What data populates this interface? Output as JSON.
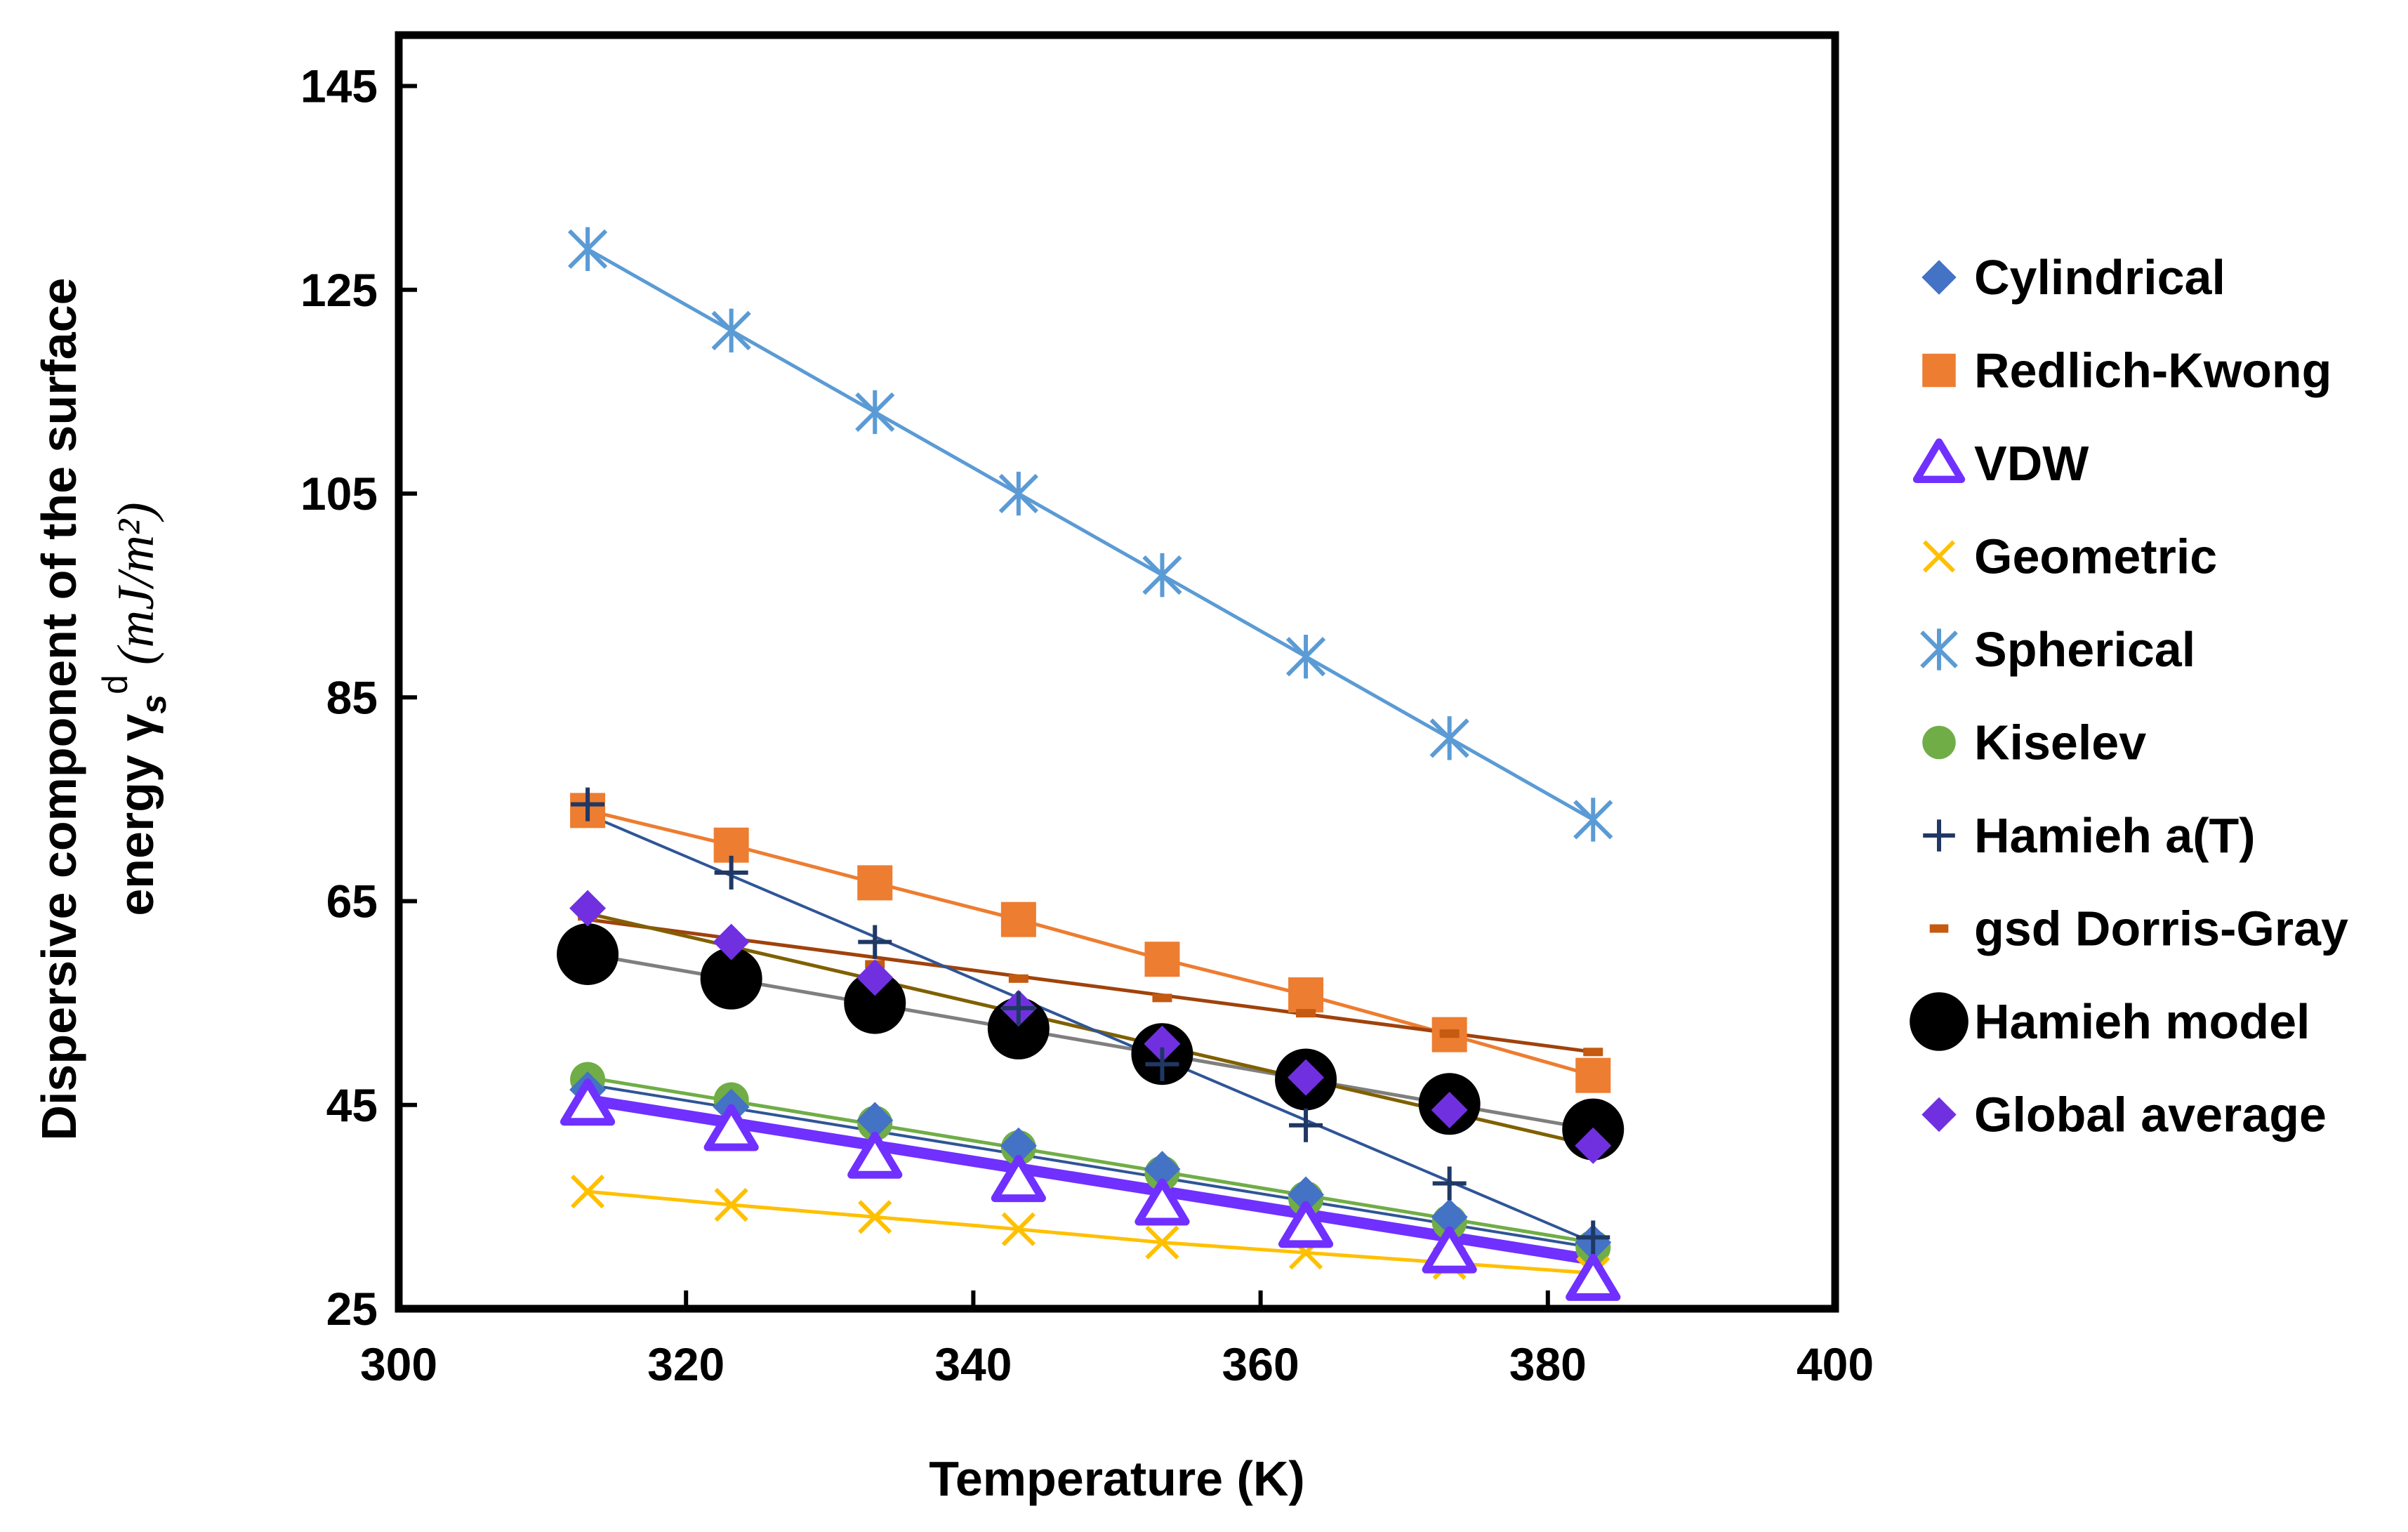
{
  "chart_data": {
    "type": "scatter",
    "title": "",
    "xlabel": "Temperature (K)",
    "ylabel_line1": "Dispersive component of the surface",
    "ylabel_line2_prefix": "energy γ",
    "ylabel_sub": "s",
    "ylabel_sup": "d",
    "ylabel_units": "(mJ/m²)",
    "xlim": [
      300,
      400
    ],
    "ylim": [
      25,
      150
    ],
    "x_ticks": [
      300,
      320,
      340,
      360,
      380,
      400
    ],
    "y_ticks": [
      25,
      45,
      65,
      85,
      105,
      125,
      145
    ],
    "legend_position": "right",
    "x": [
      313.15,
      323.15,
      333.15,
      343.15,
      353.15,
      363.15,
      373.15,
      383.15
    ],
    "series": [
      {
        "name": "Cylindrical",
        "color": "#4472C4",
        "marker": "diamond",
        "values": [
          46.5,
          44.8,
          43.5,
          41.0,
          38.7,
          36.2,
          34.0,
          31.5
        ],
        "fit": [
          47.0,
          31.0
        ],
        "fit_color": "#2F5597",
        "fit_width": 4
      },
      {
        "name": "Redlich-Kwong",
        "color": "#ED7D31",
        "marker": "square",
        "values": [
          73.9,
          70.5,
          66.8,
          63.2,
          59.3,
          55.8,
          51.9,
          47.9
        ],
        "fit": [
          73.9,
          47.9
        ],
        "fit_color": "#ED7D31",
        "fit_width": 5
      },
      {
        "name": "VDW",
        "color": "#7030FF",
        "marker": "triangle",
        "values": [
          45.0,
          42.5,
          39.8,
          37.5,
          35.2,
          33.0,
          30.5,
          27.8
        ],
        "fit": [
          45.5,
          29.8
        ],
        "fit_color": "#7030FF",
        "fit_width": 16
      },
      {
        "name": "Geometric",
        "color": "#FFC000",
        "marker": "x",
        "values": [
          36.5,
          35.2,
          34.0,
          32.8,
          31.5,
          30.5,
          29.5,
          28.5
        ],
        "fit": [
          36.5,
          28.5
        ],
        "fit_color": "#FFC000",
        "fit_width": 5
      },
      {
        "name": "Spherical",
        "color": "#5B9BD5",
        "marker": "star",
        "values": [
          129.0,
          121.0,
          113.0,
          105.0,
          97.0,
          89.0,
          81.0,
          73.0
        ],
        "fit": [
          129.0,
          73.0
        ],
        "fit_color": "#5B9BD5",
        "fit_width": 5
      },
      {
        "name": "Kiselev",
        "color": "#70AD47",
        "marker": "circle",
        "values": [
          47.5,
          45.5,
          43.2,
          40.8,
          38.3,
          35.8,
          33.5,
          31.0
        ],
        "fit": [
          47.7,
          31.5
        ],
        "fit_color": "#70AD47",
        "fit_width": 5
      },
      {
        "name": "Hamieh a(T)",
        "color": "#1F3864",
        "marker": "plus",
        "values": [
          74.5,
          67.8,
          61.0,
          54.5,
          49.0,
          43.0,
          37.3,
          32.0
        ],
        "fit": [
          73.5,
          31.5
        ],
        "fit_color": "#2F5597",
        "fit_width": 4
      },
      {
        "name": "gsd Dorris-Gray",
        "color": "#C55A11",
        "marker": "dash",
        "values": [
          63.5,
          61.0,
          58.8,
          57.4,
          55.5,
          54.0,
          52.0,
          50.2
        ],
        "fit": [
          63.2,
          50.2
        ],
        "fit_color": "#A0420C",
        "fit_width": 5
      },
      {
        "name": "Hamieh model",
        "color": "#000000",
        "marker": "bigcircle",
        "values": [
          59.8,
          57.4,
          55.0,
          52.5,
          50.0,
          47.5,
          45.1,
          42.6
        ],
        "fit": [
          59.8,
          42.6
        ],
        "fit_color": "#7F7F7F",
        "fit_width": 5
      },
      {
        "name": "Global average",
        "color": "#7030E0",
        "marker": "diamond",
        "values": [
          64.3,
          61.0,
          57.5,
          54.5,
          51.0,
          47.7,
          44.5,
          41.0
        ],
        "fit": [
          63.8,
          41.0
        ],
        "fit_color": "#806000",
        "fit_width": 5
      }
    ]
  }
}
